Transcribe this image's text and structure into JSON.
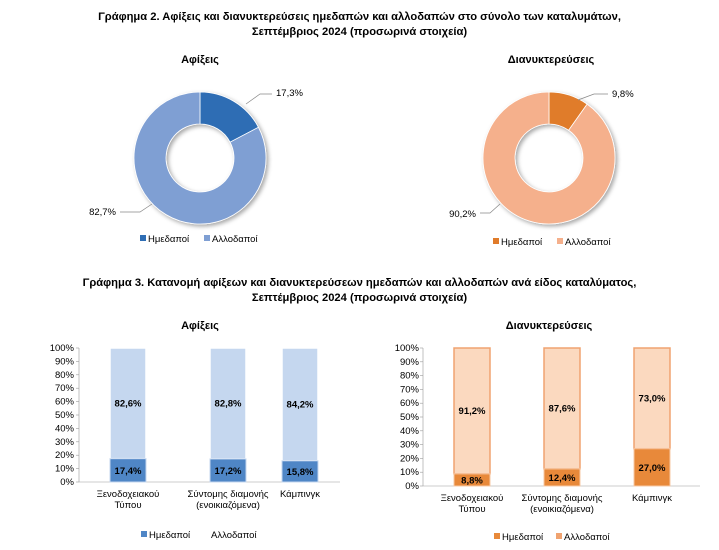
{
  "figure2": {
    "title_line1": "Γράφημα 2. Αφίξεις και διανυκτερεύσεις ημεδαπών και αλλοδαπών στο σύνολο των καταλυμάτων,",
    "title_line2": "Σεπτέμβριος 2024  (προσωρινά στοιχεία)"
  },
  "figure3": {
    "title_line1": "Γράφημα 3. Κατανομή αφίξεων και διανυκτερεύσεων ημεδαπών και αλλοδαπών ανά είδος καταλύματος,",
    "title_line2": "Σεπτέμβριος 2024 (προσωρινά στοιχεία)"
  },
  "colors": {
    "arrivals_domestic": "#2e6db4",
    "arrivals_foreign": "#7f9fd3",
    "arrivals_bar_domestic": "#4f86c6",
    "arrivals_bar_foreign": "#c5d7ef",
    "nights_domestic": "#e07b2a",
    "nights_foreign": "#f5b08c",
    "nights_bar_domestic": "#e8893a",
    "nights_bar_foreign": "#fbd9bf"
  },
  "chart_data": [
    {
      "type": "pie",
      "title": "Αφίξεις",
      "categories": [
        "Ημεδαποί",
        "Αλλοδαποί"
      ],
      "values": [
        17.3,
        82.7
      ],
      "labels": [
        "17,3%",
        "82,7%"
      ],
      "legend_position": "bottom"
    },
    {
      "type": "pie",
      "title": "Διανυκτερεύσεις",
      "categories": [
        "Ημεδαποί",
        "Αλλοδαποί"
      ],
      "values": [
        9.8,
        90.2
      ],
      "labels": [
        "9,8%",
        "90,2%"
      ],
      "legend_position": "bottom"
    },
    {
      "type": "bar",
      "stacked": true,
      "title": "Αφίξεις",
      "categories": [
        "Ξενοδοχειακού Τύπου",
        "Σύντομης διαμονής (ενοικιαζόμενα)",
        "Κάμπινγκ"
      ],
      "ytick_labels": [
        "0%",
        "10%",
        "20%",
        "30%",
        "40%",
        "50%",
        "60%",
        "70%",
        "80%",
        "90%",
        "100%"
      ],
      "ylim": [
        0,
        100
      ],
      "series": [
        {
          "name": "Ημεδαποί",
          "values": [
            17.4,
            17.2,
            15.8
          ],
          "labels": [
            "17,4%",
            "17,2%",
            "15,8%"
          ]
        },
        {
          "name": "Αλλοδαποί",
          "values": [
            82.6,
            82.8,
            84.2
          ],
          "labels": [
            "82,6%",
            "82,8%",
            "84,2%"
          ]
        }
      ],
      "legend_position": "bottom"
    },
    {
      "type": "bar",
      "stacked": true,
      "title": "Διανυκτερεύσεις",
      "categories": [
        "Ξενοδοχειακού Τύπου",
        "Σύντομης διαμονής (ενοικιαζόμενα)",
        "Κάμπινγκ"
      ],
      "ytick_labels": [
        "0%",
        "10%",
        "20%",
        "30%",
        "40%",
        "50%",
        "60%",
        "70%",
        "80%",
        "90%",
        "100%"
      ],
      "ylim": [
        0,
        100
      ],
      "series": [
        {
          "name": "Ημεδαποί",
          "values": [
            8.8,
            12.4,
            27.0
          ],
          "labels": [
            "8,8%",
            "12,4%",
            "27,0%"
          ]
        },
        {
          "name": "Αλλοδαποί",
          "values": [
            91.2,
            87.6,
            73.0
          ],
          "labels": [
            "91,2%",
            "87,6%",
            "73,0%"
          ]
        }
      ],
      "legend_position": "bottom"
    }
  ]
}
